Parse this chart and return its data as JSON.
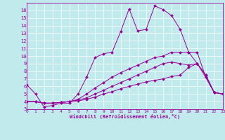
{
  "xlabel": "Windchill (Refroidissement éolien,°C)",
  "bg_color": "#c0eaec",
  "line_color": "#990099",
  "grid_color": "#ffffff",
  "xmin": 0,
  "xmax": 23,
  "ymin": 3,
  "ymax": 17,
  "yticks": [
    3,
    4,
    5,
    6,
    7,
    8,
    9,
    10,
    11,
    12,
    13,
    14,
    15,
    16
  ],
  "line1_x": [
    0,
    1,
    2,
    3,
    4,
    5,
    6,
    7,
    8,
    9,
    10,
    11,
    12,
    13,
    14,
    15,
    16,
    17,
    18,
    19,
    20,
    21,
    22,
    23
  ],
  "line1_y": [
    6.2,
    5.0,
    3.3,
    3.5,
    3.8,
    3.8,
    5.0,
    7.2,
    9.8,
    10.3,
    10.5,
    13.2,
    16.2,
    13.3,
    13.5,
    16.6,
    16.1,
    15.3,
    13.5,
    10.5,
    9.0,
    7.5,
    5.2,
    5.0
  ],
  "line2_x": [
    0,
    1,
    2,
    3,
    4,
    5,
    6,
    7,
    8,
    9,
    10,
    11,
    12,
    13,
    14,
    15,
    16,
    17,
    18,
    19,
    20,
    21,
    22,
    23
  ],
  "line2_y": [
    4.0,
    4.0,
    3.8,
    3.8,
    3.9,
    4.0,
    4.3,
    5.0,
    5.8,
    6.5,
    7.2,
    7.8,
    8.3,
    8.8,
    9.3,
    9.8,
    10.0,
    10.5,
    10.5,
    10.5,
    10.5,
    7.2,
    5.2,
    5.0
  ],
  "line3_x": [
    0,
    1,
    2,
    3,
    4,
    5,
    6,
    7,
    8,
    9,
    10,
    11,
    12,
    13,
    14,
    15,
    16,
    17,
    18,
    19,
    20,
    21,
    22,
    23
  ],
  "line3_y": [
    4.0,
    4.0,
    3.8,
    3.8,
    3.9,
    4.0,
    4.2,
    4.5,
    5.0,
    5.5,
    6.0,
    6.5,
    7.0,
    7.5,
    8.0,
    8.5,
    9.0,
    9.2,
    9.0,
    8.8,
    9.0,
    7.5,
    5.2,
    5.0
  ],
  "line4_x": [
    0,
    1,
    2,
    3,
    4,
    5,
    6,
    7,
    8,
    9,
    10,
    11,
    12,
    13,
    14,
    15,
    16,
    17,
    18,
    19,
    20,
    21,
    22,
    23
  ],
  "line4_y": [
    4.0,
    4.0,
    3.8,
    3.8,
    3.9,
    4.0,
    4.1,
    4.3,
    4.6,
    5.0,
    5.3,
    5.7,
    6.0,
    6.3,
    6.6,
    6.8,
    7.0,
    7.3,
    7.5,
    8.5,
    9.0,
    7.2,
    5.2,
    5.0
  ]
}
